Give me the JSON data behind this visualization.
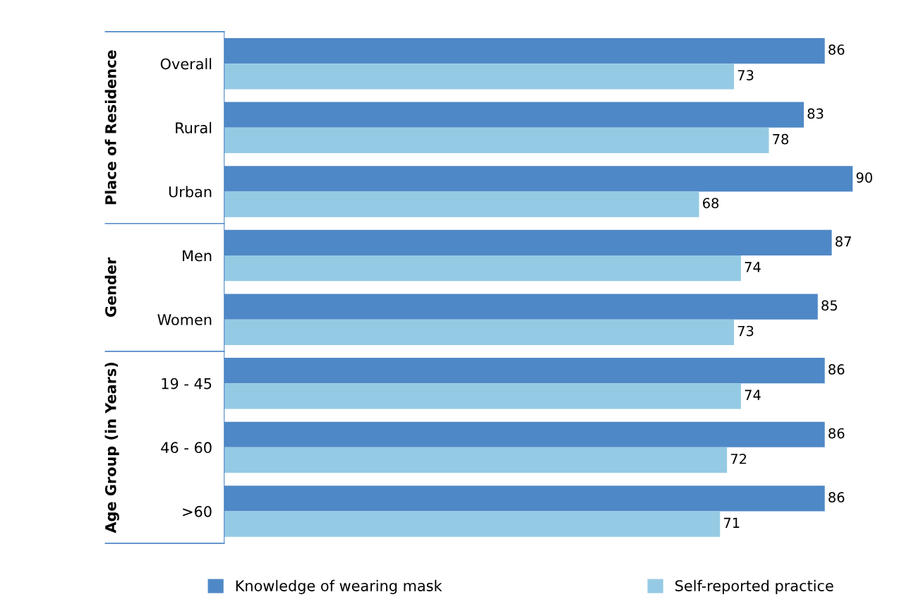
{
  "chart_data": {
    "type": "bar",
    "orientation": "horizontal",
    "categories": [
      "Overall",
      "Rural",
      "Urban",
      "Men",
      "Women",
      "19 - 45",
      "46 - 60",
      ">60"
    ],
    "series": [
      {
        "name": "Knowledge of wearing mask",
        "color": "#4f88c6",
        "values": [
          86,
          83,
          90,
          87,
          85,
          86,
          86,
          86
        ]
      },
      {
        "name": "Self-reported practice",
        "color": "#95cae4",
        "values": [
          73,
          78,
          68,
          74,
          73,
          74,
          72,
          71
        ]
      }
    ],
    "tick_labels": "y",
    "data_labels": true,
    "grid": false,
    "legend": "bottom",
    "annotations": [
      "Place of Residence",
      "Gender",
      "Age Group (in Years)"
    ]
  }
}
